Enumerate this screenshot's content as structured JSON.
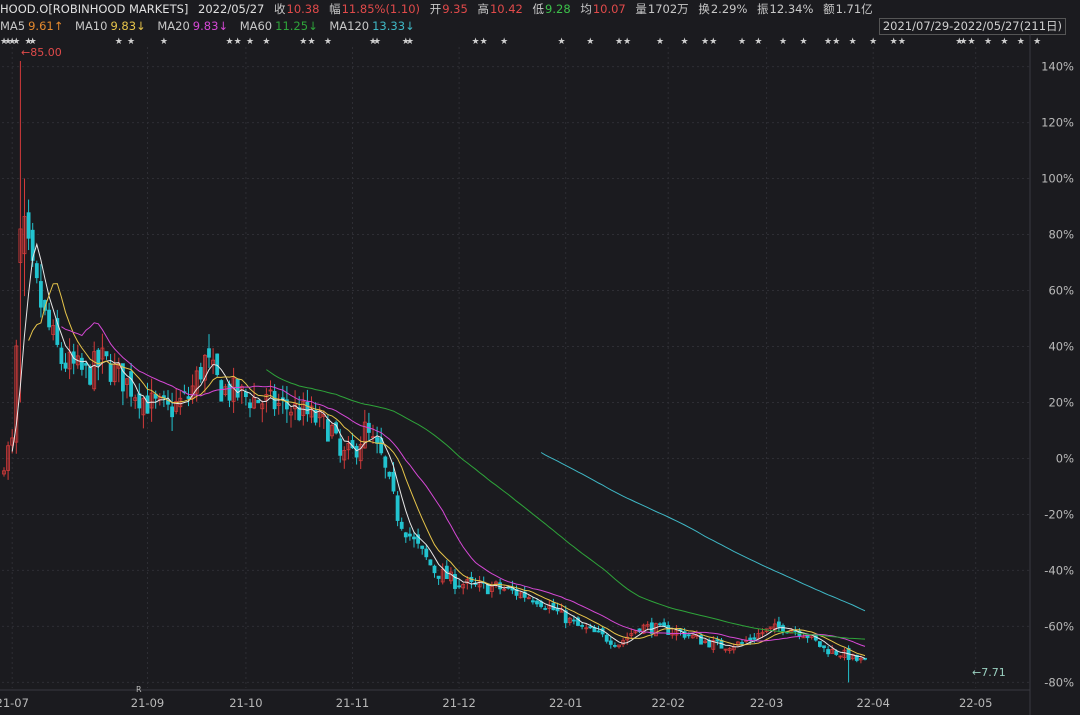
{
  "header": {
    "symbol": "HOOD.O[ROBINHOOD MARKETS]",
    "date": "2022/05/27",
    "close_label": "收",
    "close": "10.38",
    "change_label": "幅",
    "change": "11.85%(1.10)",
    "open_label": "开",
    "open": "9.35",
    "high_label": "高",
    "high": "10.42",
    "low_label": "低",
    "low": "9.28",
    "avg_label": "均",
    "avg": "10.07",
    "volume_label": "量",
    "volume": "1702万",
    "turnover_label": "换",
    "turnover": "2.29%",
    "amplitude_label": "振",
    "amplitude": "12.34%",
    "amount_label": "额",
    "amount": "1.71亿"
  },
  "ma_row": {
    "ma5_label": "MA5",
    "ma5": "9.61↑",
    "ma10_label": "MA10",
    "ma10": "9.83↓",
    "ma20_label": "MA20",
    "ma20": "9.83↓",
    "ma60_label": "MA60",
    "ma60": "11.25↓",
    "ma120_label": "MA120",
    "ma120": "13.33↓"
  },
  "date_range": "2021/07/29-2022/05/27(211日)",
  "colors": {
    "background": "#1b1b1f",
    "up": "#d23a3a",
    "down": "#22c3cf",
    "ma5": "#e8e8e8",
    "ma10": "#e6c44a",
    "ma20": "#d548d5",
    "ma60": "#2ea43a",
    "ma120": "#3fb8c6",
    "grid": "#2e2e34"
  },
  "annotations": {
    "high_marker": "←85.00",
    "low_marker": "←7.71",
    "r_marker": "R"
  },
  "chart_data": {
    "type": "candlestick",
    "y_unit": "percent change",
    "ylim": [
      -82,
      147
    ],
    "y_ticks": [
      "140%",
      "120%",
      "100%",
      "80%",
      "60%",
      "40%",
      "20%",
      "0%",
      "-20%",
      "-40%",
      "-60%",
      "-80%"
    ],
    "y_tick_values": [
      140,
      120,
      100,
      80,
      60,
      40,
      20,
      0,
      -20,
      -40,
      -60,
      -80
    ],
    "x_ticks": [
      "21-07",
      "21-09",
      "21-10",
      "21-11",
      "21-12",
      "22-01",
      "22-02",
      "22-03",
      "22-04",
      "22-05"
    ],
    "x_tick_index": [
      2,
      35,
      59,
      85,
      111,
      137,
      162,
      186,
      212,
      237
    ],
    "n_bars": 211,
    "grid": true,
    "anchors": [
      [
        0,
        0
      ],
      [
        2,
        5
      ],
      [
        4,
        68
      ],
      [
        5,
        80
      ],
      [
        7,
        65
      ],
      [
        10,
        50
      ],
      [
        14,
        35
      ],
      [
        20,
        30
      ],
      [
        24,
        35
      ],
      [
        30,
        27
      ],
      [
        35,
        20
      ],
      [
        40,
        17
      ],
      [
        45,
        22
      ],
      [
        49,
        35
      ],
      [
        53,
        25
      ],
      [
        59,
        22
      ],
      [
        64,
        20
      ],
      [
        70,
        18
      ],
      [
        75,
        15
      ],
      [
        80,
        10
      ],
      [
        82,
        0
      ],
      [
        85,
        2
      ],
      [
        88,
        10
      ],
      [
        92,
        0
      ],
      [
        96,
        -20
      ],
      [
        100,
        -30
      ],
      [
        105,
        -40
      ],
      [
        110,
        -44
      ],
      [
        115,
        -46
      ],
      [
        120,
        -46
      ],
      [
        125,
        -48
      ],
      [
        130,
        -50
      ],
      [
        135,
        -55
      ],
      [
        140,
        -60
      ],
      [
        145,
        -63
      ],
      [
        150,
        -66
      ],
      [
        155,
        -60
      ],
      [
        160,
        -61
      ],
      [
        165,
        -62
      ],
      [
        170,
        -65
      ],
      [
        175,
        -67
      ],
      [
        180,
        -66
      ],
      [
        185,
        -62
      ],
      [
        190,
        -60
      ],
      [
        195,
        -62
      ],
      [
        200,
        -68
      ],
      [
        205,
        -70
      ],
      [
        208,
        -72
      ],
      [
        211,
        -73
      ],
      [
        215,
        -76
      ],
      [
        220,
        -71
      ],
      [
        225,
        -72
      ],
      [
        230,
        -73
      ],
      [
        235,
        -72
      ],
      [
        239,
        -80
      ],
      [
        244,
        -71
      ],
      [
        250,
        -72
      ],
      [
        254,
        -72
      ]
    ],
    "ma_start": {
      "ma5": 2,
      "ma10": 6,
      "ma20": 14,
      "ma60": 64,
      "ma120": 131
    }
  }
}
